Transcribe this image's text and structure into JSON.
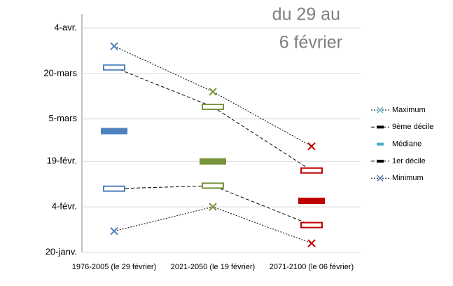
{
  "chart_data": {
    "type": "dot-range",
    "annotation": [
      "du 29 au",
      "6 février"
    ],
    "categories": [
      "1976-2005 (le 29 février)",
      "2021-2050 (le 19 février)",
      "2071-2100 (le 06 février)"
    ],
    "category_colors": [
      "#4f81bd",
      "#77933c",
      "#c00000"
    ],
    "ylim": [
      20,
      94
    ],
    "yticks": [
      {
        "value": 20,
        "label": "20-janv."
      },
      {
        "value": 35,
        "label": "4-févr."
      },
      {
        "value": 50,
        "label": "19-févr."
      },
      {
        "value": 64,
        "label": "5-mars"
      },
      {
        "value": 79,
        "label": "20-mars"
      },
      {
        "value": 94,
        "label": "4-avr."
      }
    ],
    "grid": true,
    "series": [
      {
        "name": "Maximum",
        "marker": "x",
        "line": "dotted",
        "color": "#4bacc6",
        "values": [
          88,
          73,
          55
        ]
      },
      {
        "name": "9ème décile",
        "marker": "open-rect",
        "line": "dashed",
        "color": "#000000",
        "values": [
          81,
          68,
          47
        ]
      },
      {
        "name": "Médiane",
        "marker": "bar",
        "line": null,
        "color": "#4bacc6",
        "values": [
          60,
          50,
          37
        ]
      },
      {
        "name": "1er décile",
        "marker": "open-rect",
        "line": "dashed",
        "color": "#000000",
        "values": [
          41,
          42,
          29
        ]
      },
      {
        "name": "Minimum",
        "marker": "x",
        "line": "dotted",
        "color": "#4f6fbd",
        "values": [
          27,
          35,
          23
        ]
      }
    ]
  }
}
